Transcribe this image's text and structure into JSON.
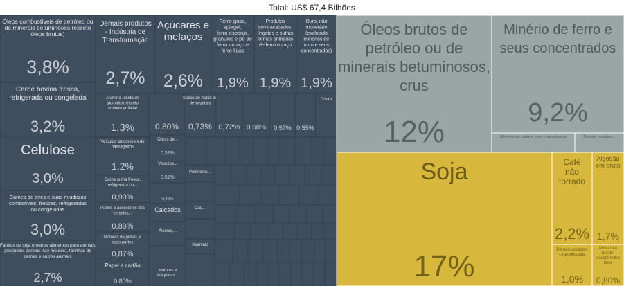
{
  "chart_data": {
    "type": "treemap",
    "title": "Total: US$ 67,4 Bilhões",
    "colors": {
      "industria": "#3f4e5e",
      "extrativa": "#9aa5a5",
      "agro": "#d8b83c",
      "border": "#ffffff",
      "label_dark": "#e0e4e8",
      "label_light": "#4f5a5a",
      "label_agro": "#6b5a14"
    },
    "items": [
      {
        "group": "industria",
        "name": "Óleos combustíveis de petróleo ou de minerais betuminosos (exceto óleos brutos)",
        "value": "3,8%"
      },
      {
        "group": "industria",
        "name": "Carne bovina fresca, refrigerada ou congelada",
        "value": "3,2%"
      },
      {
        "group": "industria",
        "name": "Celulose",
        "value": "3,0%"
      },
      {
        "group": "industria",
        "name": "Carnes de aves e suas miudezas comestíveis, frescas, refrigeradas ou congeladas",
        "value": "3,0%"
      },
      {
        "group": "industria",
        "name": "Farelos de soja e outros alimentos para animais (excluídos cereais não moídos), farinhas de carnes e outros animais",
        "value": "2,7%"
      },
      {
        "group": "industria",
        "name": "Demais produtos - Indústria de Transformação",
        "value": "2,7%"
      },
      {
        "group": "industria",
        "name": "Açúcares e melaços",
        "value": "2,6%"
      },
      {
        "group": "industria",
        "name": "Ferro-gusa, spiegel, ferro-esponja, grânulos e pó de ferro ou aço e ferro-ligas",
        "value": "1,9%"
      },
      {
        "group": "industria",
        "name": "Produtos semi-acabados, lingotes e outras formas primárias de ferro ou aço",
        "value": "1,9%"
      },
      {
        "group": "industria",
        "name": "Ouro, não monetário (excluindo minérios de ouro e seus concentrados)",
        "value": "1,9%"
      },
      {
        "group": "industria",
        "name": "Alumina (óxido de alumínio), exceto corindo artificial",
        "value": "1,3%"
      },
      {
        "group": "industria",
        "name": "",
        "value": "0,80%"
      },
      {
        "group": "industria",
        "name": "Sucos de frutas ou de vegetais",
        "value": "0,73%"
      },
      {
        "group": "industria",
        "name": "",
        "value": "0,72%"
      },
      {
        "group": "industria",
        "name": "",
        "value": "0,68%"
      },
      {
        "group": "industria",
        "name": "",
        "value": "0,57%"
      },
      {
        "group": "industria",
        "name": "",
        "value": "0,55%"
      },
      {
        "group": "industria",
        "name": "Couro",
        "value": ""
      },
      {
        "group": "industria",
        "name": "Veículos automóveis de passageiros",
        "value": "1,2%"
      },
      {
        "group": "industria",
        "name": "Carne suína fresca, refrigerada ou...",
        "value": "0,90%"
      },
      {
        "group": "industria",
        "name": "Partes e acessórios dos veículos...",
        "value": "0,89%"
      },
      {
        "group": "industria",
        "name": "Motores de pistão, e suas partes",
        "value": "0,87%"
      },
      {
        "group": "industria",
        "name": "Papel e cartão",
        "value": "0,80%"
      },
      {
        "group": "industria",
        "name": "Obras de...",
        "value": "0,51%"
      },
      {
        "group": "industria",
        "name": "Veículos...",
        "value": "0,51%"
      },
      {
        "group": "industria",
        "name": "",
        "value": "0,49%"
      },
      {
        "group": "industria",
        "name": "Calçados",
        "value": ""
      },
      {
        "group": "industria",
        "name": "Álcoois,...",
        "value": ""
      },
      {
        "group": "industria",
        "name": "Motores e máquinas...",
        "value": ""
      },
      {
        "group": "industria",
        "name": "Polímeros...",
        "value": ""
      },
      {
        "group": "industria",
        "name": "Cal,...",
        "value": ""
      },
      {
        "group": "industria",
        "name": "Alumínio",
        "value": ""
      },
      {
        "group": "extrativa",
        "name": "Óleos brutos de petróleo ou de minerais betuminosos, crus",
        "value": "12%"
      },
      {
        "group": "extrativa",
        "name": "Minério de ferro e seus concentrados",
        "value": "9,2%"
      },
      {
        "group": "extrativa",
        "name": "Minérios de cobre e seus concentrados",
        "value": ""
      },
      {
        "group": "extrativa",
        "name": "Demais produtos...",
        "value": ""
      },
      {
        "group": "agro",
        "name": "Soja",
        "value": "17%"
      },
      {
        "group": "agro",
        "name": "Café não torrado",
        "value": "2,2%"
      },
      {
        "group": "agro",
        "name": "Algodão em bruto",
        "value": "1,7%"
      },
      {
        "group": "agro",
        "name": "Demais produtos - Agropecuária",
        "value": "1,0%"
      },
      {
        "group": "agro",
        "name": "Milho não moído, exceto milho doce",
        "value": "0,80%"
      }
    ]
  }
}
